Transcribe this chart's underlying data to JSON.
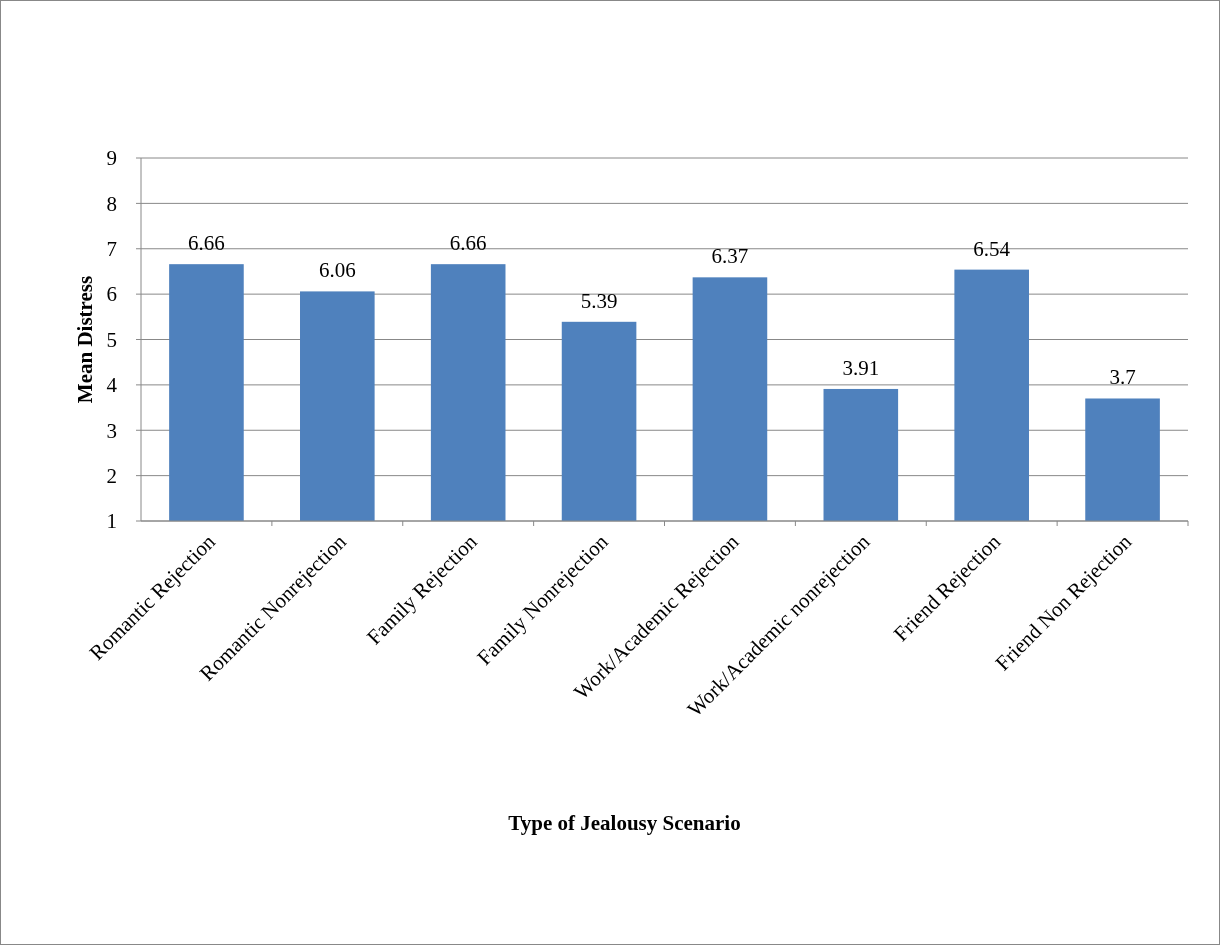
{
  "chart_data": {
    "type": "bar",
    "xlabel": "Type of Jealousy Scenario",
    "ylabel": "Mean Distress",
    "categories": [
      "Romantic Rejection",
      "Romantic Nonrejection",
      "Family Rejection",
      "Family Nonrejection",
      "Work/Academic Rejection",
      "Work/Academic nonrejection",
      "Friend Rejection",
      "Friend Non Rejection"
    ],
    "values": [
      6.66,
      6.06,
      6.66,
      5.39,
      6.37,
      3.91,
      6.54,
      3.7
    ],
    "color": "#4f81bd",
    "ylim": [
      1,
      9
    ],
    "yticks": [
      1,
      2,
      3,
      4,
      5,
      6,
      7,
      8,
      9
    ],
    "grid": "y",
    "data_labels": true
  }
}
